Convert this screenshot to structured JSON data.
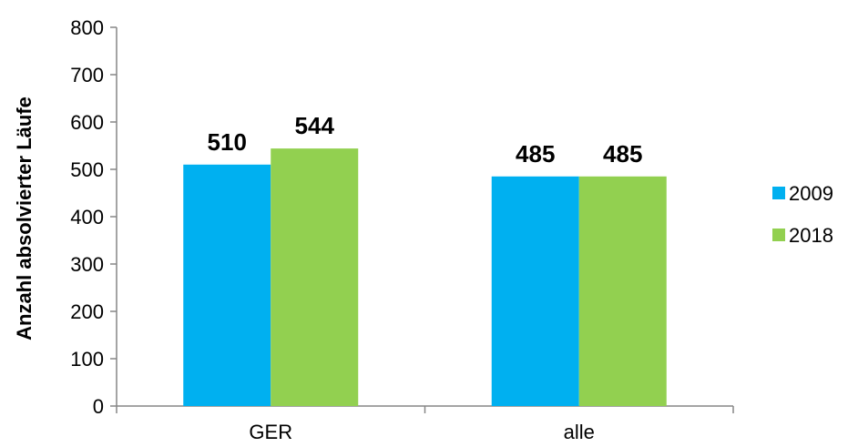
{
  "chart_data": {
    "type": "bar",
    "categories": [
      "GER",
      "alle"
    ],
    "series": [
      {
        "name": "2009",
        "values": [
          510,
          485
        ],
        "color": "#00b0f0"
      },
      {
        "name": "2018",
        "values": [
          544,
          485
        ],
        "color": "#92d050"
      }
    ],
    "ylabel": "Anzahl absolvierter Läufe",
    "xlabel": "",
    "ylim": [
      0,
      800
    ],
    "yticks": [
      "0",
      "100",
      "200",
      "300",
      "400",
      "500",
      "600",
      "700",
      "800"
    ],
    "data_labels": [
      [
        "510",
        "485"
      ],
      [
        "544",
        "485"
      ]
    ],
    "legend_position": "right",
    "grid": false
  }
}
